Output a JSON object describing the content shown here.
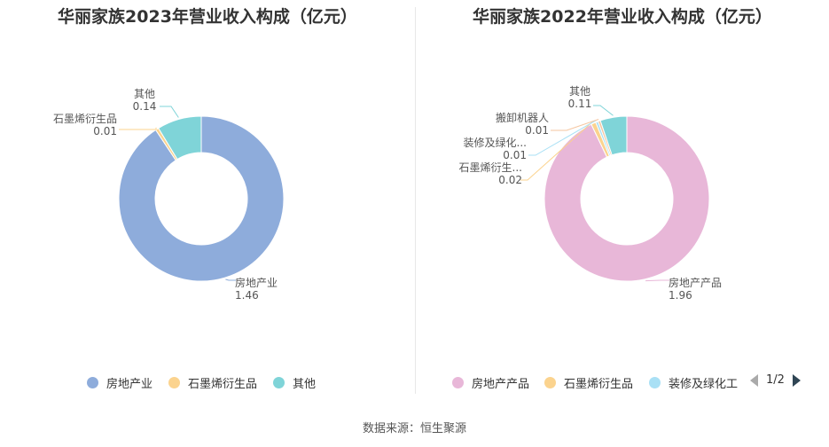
{
  "chart_data": [
    {
      "type": "pie",
      "title": "华丽家族2023年营业收入构成（亿元）",
      "series": [
        {
          "name": "房地产业",
          "value": 1.46,
          "label": "房地产业",
          "value_label": "1.46",
          "color": "#8eacdb"
        },
        {
          "name": "石墨烯衍生品",
          "value": 0.01,
          "label": "石墨烯衍生品",
          "value_label": "0.01",
          "color": "#fbd38e"
        },
        {
          "name": "其他",
          "value": 0.14,
          "label": "其他",
          "value_label": "0.14",
          "color": "#7fd4d8"
        }
      ],
      "legend": [
        "房地产业",
        "石墨烯衍生品",
        "其他"
      ],
      "legend_position": "bottom"
    },
    {
      "type": "pie",
      "title": "华丽家族2022年营业收入构成（亿元）",
      "series": [
        {
          "name": "房地产产品",
          "value": 1.96,
          "label": "房地产产品",
          "value_label": "1.96",
          "color": "#e8b7d8"
        },
        {
          "name": "石墨烯衍生品",
          "value": 0.02,
          "label": "石墨烯衍生...",
          "value_label": "0.02",
          "color": "#fbd38e"
        },
        {
          "name": "装修及绿化工程",
          "value": 0.01,
          "label": "装修及绿化...",
          "value_label": "0.01",
          "color": "#a9e0f5"
        },
        {
          "name": "搬卸机器人",
          "value": 0.01,
          "label": "搬卸机器人",
          "value_label": "0.01",
          "color": "#f5c6a0"
        },
        {
          "name": "其他",
          "value": 0.11,
          "label": "其他",
          "value_label": "0.11",
          "color": "#7fd4d8"
        }
      ],
      "legend": [
        "房地产产品",
        "石墨烯衍生品",
        "装修及绿化工"
      ],
      "legend_position": "bottom",
      "legend_page": "1/2"
    }
  ],
  "source": "数据来源：恒生聚源"
}
